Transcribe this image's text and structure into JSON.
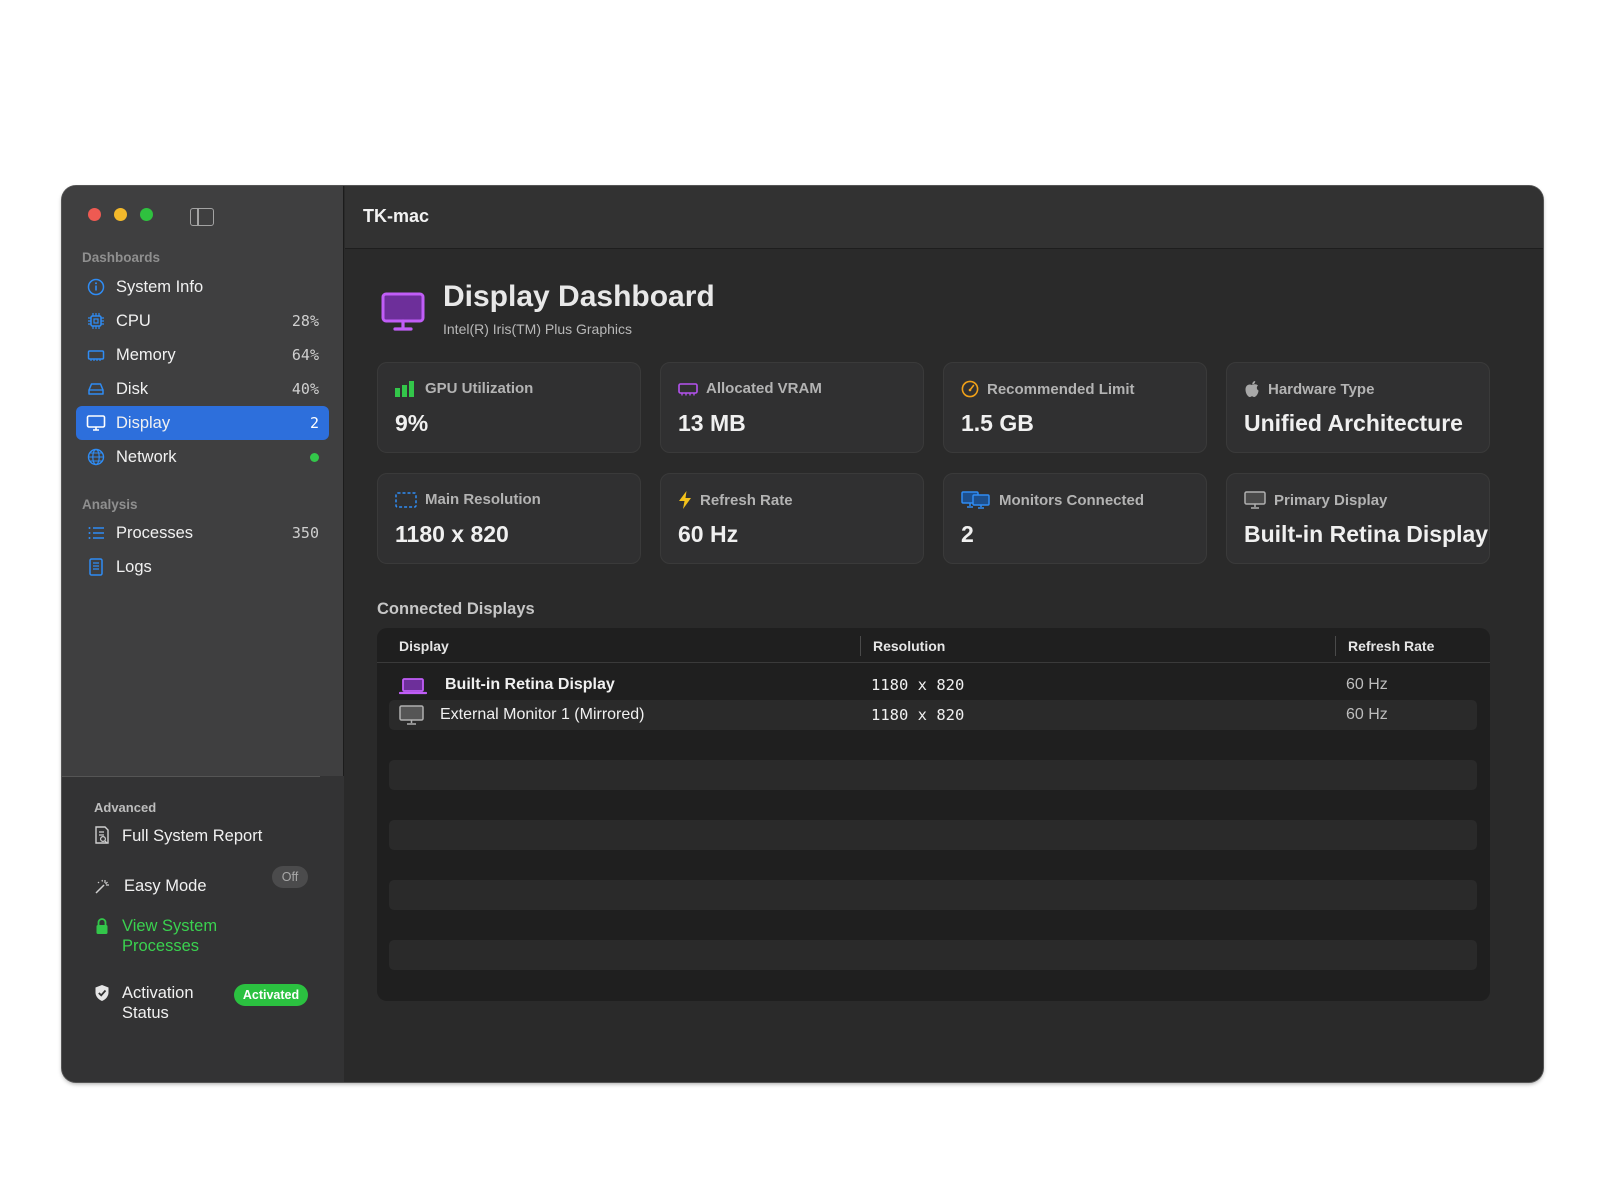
{
  "window_title": "TK-mac",
  "sidebar": {
    "dashboards_label": "Dashboards",
    "analysis_label": "Analysis",
    "items": [
      {
        "label": "System Info",
        "value": "",
        "icon": "info-circle-icon"
      },
      {
        "label": "CPU",
        "value": "28%",
        "icon": "cpu-icon"
      },
      {
        "label": "Memory",
        "value": "64%",
        "icon": "memory-icon"
      },
      {
        "label": "Disk",
        "value": "40%",
        "icon": "disk-icon"
      },
      {
        "label": "Display",
        "value": "2",
        "icon": "display-icon",
        "active": true
      },
      {
        "label": "Network",
        "value": "",
        "icon": "globe-icon",
        "status": "online"
      }
    ],
    "analysis_items": [
      {
        "label": "Processes",
        "value": "350",
        "icon": "list-icon"
      },
      {
        "label": "Logs",
        "value": "",
        "icon": "document-icon"
      }
    ],
    "advanced": {
      "label": "Advanced",
      "full_report": "Full System Report",
      "easy_mode": "Easy Mode",
      "easy_mode_state": "Off",
      "view_processes_line1": "View System",
      "view_processes_line2": "Processes",
      "activation_line1": "Activation",
      "activation_line2": "Status",
      "activation_badge": "Activated"
    }
  },
  "header": {
    "title": "Display Dashboard",
    "subtitle": "Intel(R) Iris(TM) Plus Graphics"
  },
  "cards": [
    {
      "label": "GPU Utilization",
      "value": "9%",
      "icon": "bar-chart-icon"
    },
    {
      "label": "Allocated VRAM",
      "value": "13 MB",
      "icon": "memory-chip-icon"
    },
    {
      "label": "Recommended Limit",
      "value": "1.5 GB",
      "icon": "gauge-icon"
    },
    {
      "label": "Hardware Type",
      "value": "Unified Architecture",
      "icon": "apple-icon"
    },
    {
      "label": "Main Resolution",
      "value": "1180 x 820",
      "icon": "resolution-icon"
    },
    {
      "label": "Refresh Rate",
      "value": "60 Hz",
      "icon": "bolt-icon"
    },
    {
      "label": "Monitors Connected",
      "value": "2",
      "icon": "monitors-icon"
    },
    {
      "label": "Primary Display",
      "value": "Built-in Retina Display",
      "icon": "monitor-icon"
    }
  ],
  "connected": {
    "title": "Connected Displays",
    "columns": [
      "Display",
      "Resolution",
      "Refresh Rate"
    ],
    "rows": [
      {
        "display": "Built-in Retina Display",
        "resolution": "1180 x 820",
        "refresh": "60 Hz",
        "icon": "laptop-icon"
      },
      {
        "display": "External Monitor 1 (Mirrored)",
        "resolution": "1180 x 820",
        "refresh": "60 Hz",
        "icon": "monitor-icon"
      }
    ]
  },
  "colors": {
    "accent": "#2d6fdc",
    "green": "#33c64a",
    "purple": "#b552f0",
    "orange": "#f0a018",
    "blue_icon": "#2f8cf4"
  }
}
